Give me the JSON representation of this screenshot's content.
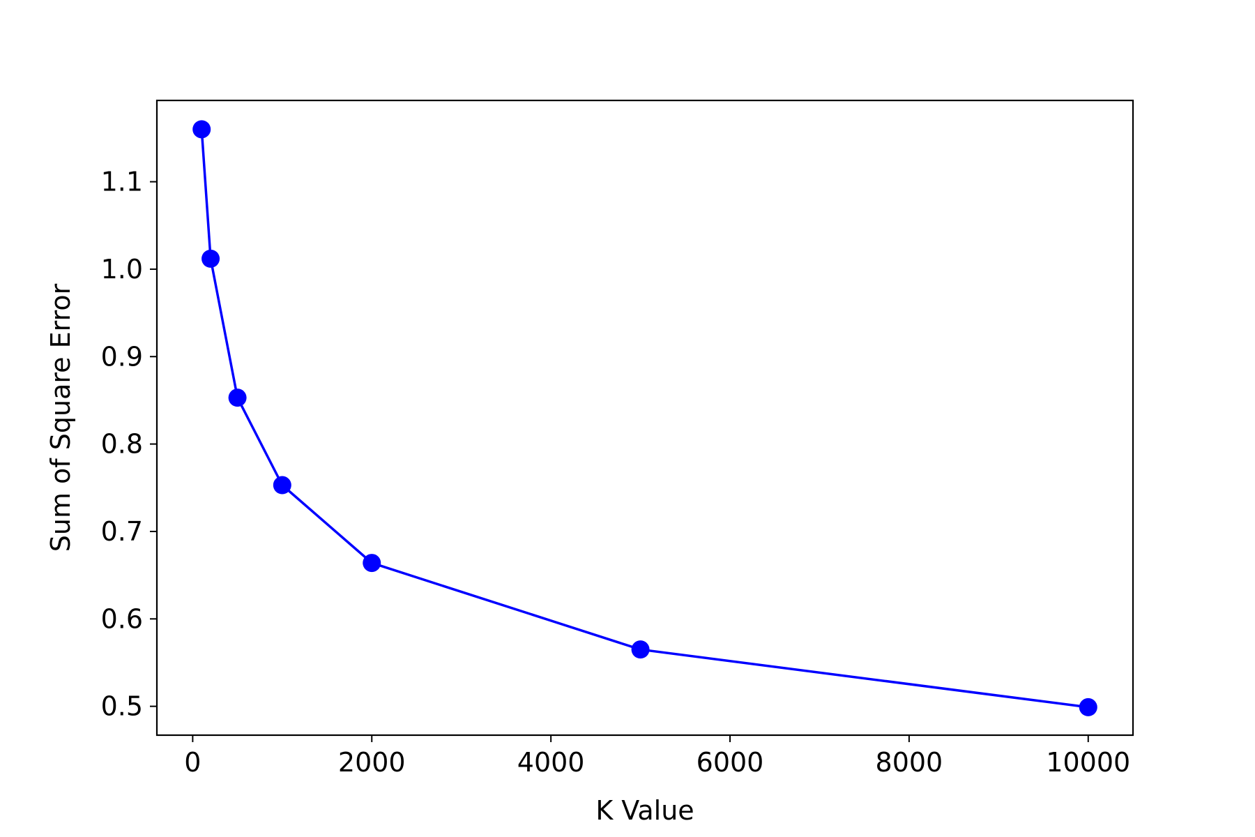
{
  "chart_data": {
    "type": "line",
    "title": "",
    "xlabel": "K Value",
    "ylabel": "Sum of Square Error",
    "xlim": [
      -400,
      10500
    ],
    "ylim": [
      0.467,
      1.193
    ],
    "xticks": [
      0,
      2000,
      4000,
      6000,
      8000,
      10000
    ],
    "yticks": [
      0.5,
      0.6,
      0.7,
      0.8,
      0.9,
      1.0,
      1.1
    ],
    "ytick_labels": [
      "0.5",
      "0.6",
      "0.7",
      "0.8",
      "0.9",
      "1.0",
      "1.1"
    ],
    "grid": false,
    "legend": "none",
    "series": [
      {
        "color": "#0000ff",
        "marker": "circle",
        "x": [
          100,
          200,
          500,
          1000,
          2000,
          5000,
          10000
        ],
        "y": [
          1.16,
          1.012,
          0.853,
          0.753,
          0.664,
          0.565,
          0.499
        ]
      }
    ]
  }
}
